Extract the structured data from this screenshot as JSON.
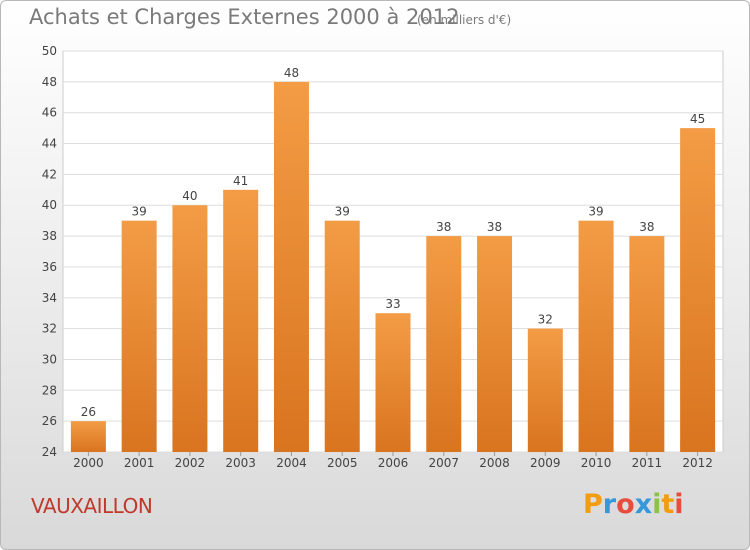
{
  "chart_data": {
    "type": "bar",
    "title": "Achats et Charges Externes 2000 à 2012",
    "unit_note": "(en milliers d'€)",
    "categories": [
      "2000",
      "2001",
      "2002",
      "2003",
      "2004",
      "2005",
      "2006",
      "2007",
      "2008",
      "2009",
      "2010",
      "2011",
      "2012"
    ],
    "values": [
      26,
      39,
      40,
      41,
      48,
      39,
      33,
      38,
      38,
      32,
      39,
      38,
      45
    ],
    "ylim": [
      24,
      50
    ],
    "yticks": [
      24,
      26,
      28,
      30,
      32,
      34,
      36,
      38,
      40,
      42,
      44,
      46,
      48,
      50
    ],
    "grid": true,
    "bar_color": "#f39c45",
    "bar_color_dark": "#d9741f"
  },
  "footer": {
    "town": "VAUXAILLON",
    "logo": "Proxiti",
    "logo_colors": [
      "#f39c12",
      "#3498db",
      "#e74c3c",
      "#3498db",
      "#8bc34a",
      "#f39c12",
      "#e74c3c"
    ]
  }
}
